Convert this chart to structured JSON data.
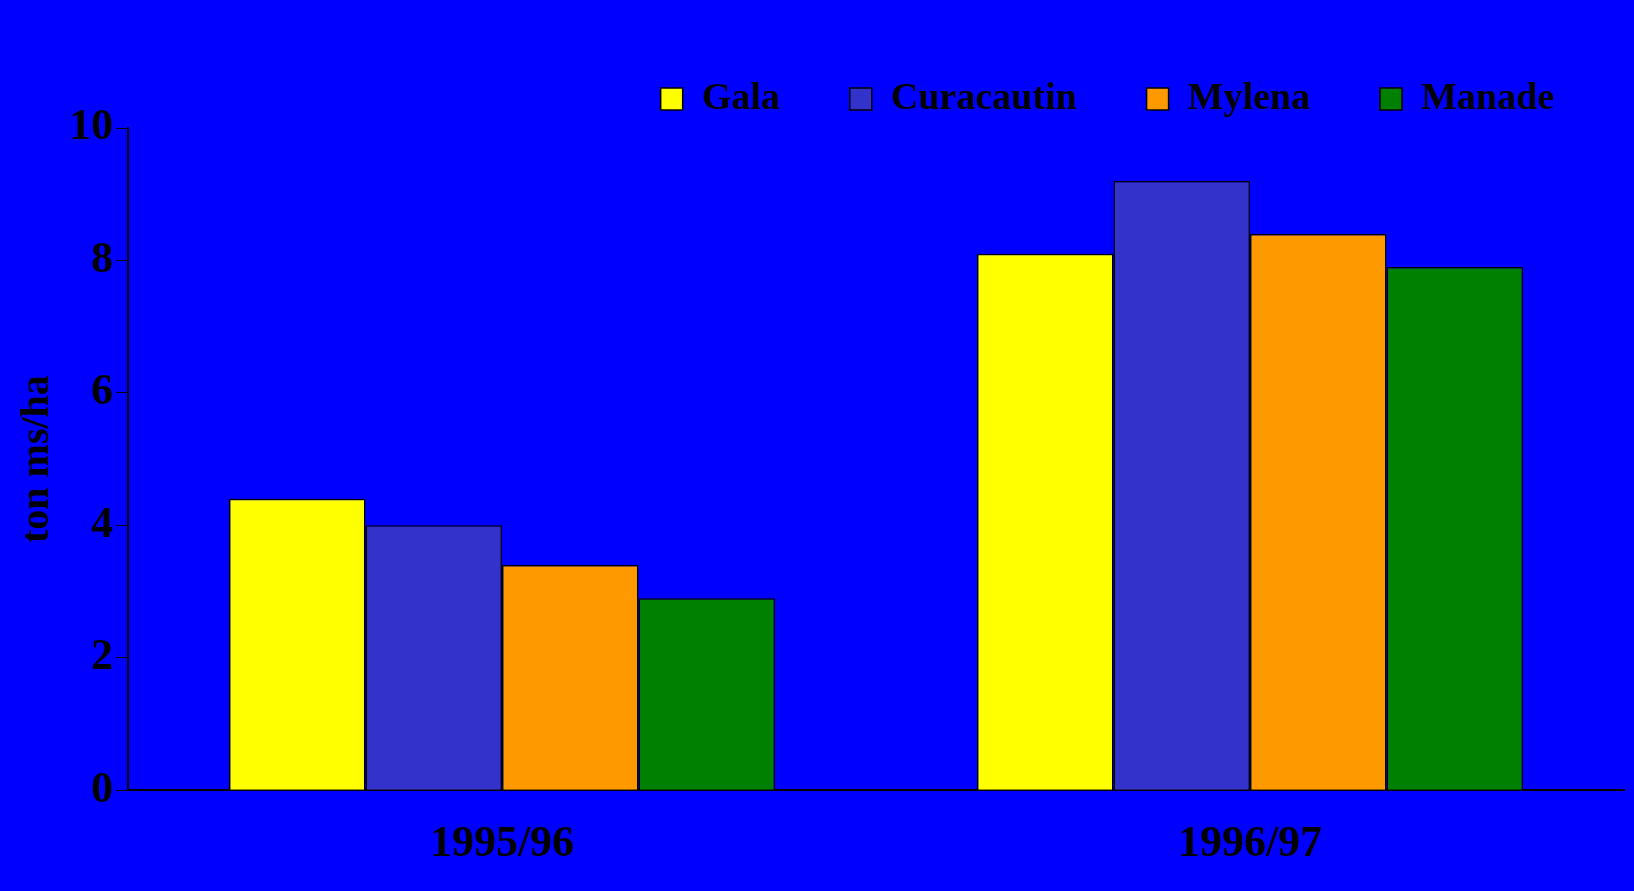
{
  "chart_data": {
    "type": "bar",
    "ylabel": "ton ms/ha",
    "categories": [
      "1995/96",
      "1996/97"
    ],
    "series": [
      {
        "name": "Gala",
        "color": "#ffff00",
        "values": [
          4.4,
          8.1
        ]
      },
      {
        "name": "Curacautin",
        "color": "#3333cc",
        "values": [
          4.0,
          9.2
        ]
      },
      {
        "name": "Mylena",
        "color": "#ff9900",
        "values": [
          3.4,
          8.4
        ]
      },
      {
        "name": "Manade",
        "color": "#008000",
        "values": [
          2.9,
          7.9
        ]
      }
    ],
    "ylim": [
      0,
      10
    ],
    "yticks": [
      0,
      2,
      4,
      6,
      8,
      10
    ],
    "grid": false,
    "legend": "top right"
  }
}
